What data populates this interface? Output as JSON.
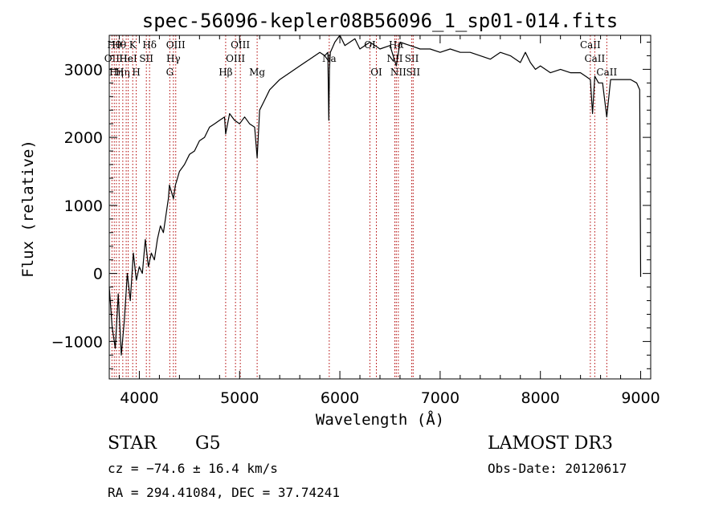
{
  "chart_data": {
    "type": "line",
    "title": "spec-56096-kepler08B56096_1_sp01-014.fits",
    "xlabel": "Wavelength (Å)",
    "ylabel": "Flux (relative)",
    "xlim": [
      3700,
      9100
    ],
    "ylim": [
      -1550,
      3500
    ],
    "x_ticks": [
      4000,
      5000,
      6000,
      7000,
      8000,
      9000
    ],
    "y_ticks": [
      -1000,
      0,
      1000,
      2000,
      3000
    ],
    "x_tick_labels": [
      "4000",
      "5000",
      "6000",
      "7000",
      "8000",
      "9000"
    ],
    "y_tick_labels": [
      "−1000",
      "0",
      "1000",
      "2000",
      "3000"
    ],
    "grid": false,
    "series": [
      {
        "x": [
          3700,
          3730,
          3760,
          3790,
          3820,
          3850,
          3880,
          3910,
          3940,
          3970,
          4000,
          4030,
          4060,
          4090,
          4120,
          4150,
          4180,
          4210,
          4240,
          4270,
          4290,
          4300,
          4320,
          4340,
          4360,
          4400,
          4450,
          4500,
          4550,
          4600,
          4650,
          4700,
          4750,
          4800,
          4850,
          4861,
          4900,
          4950,
          5000,
          5050,
          5100,
          5150,
          5175,
          5200,
          5250,
          5300,
          5400,
          5500,
          5600,
          5700,
          5800,
          5850,
          5880,
          5890,
          5896,
          5905,
          5920,
          5950,
          6000,
          6050,
          6100,
          6150,
          6200,
          6300,
          6400,
          6500,
          6563,
          6600,
          6700,
          6800,
          6900,
          7000,
          7100,
          7200,
          7300,
          7400,
          7500,
          7600,
          7700,
          7800,
          7850,
          7900,
          7950,
          8000,
          8100,
          8200,
          8300,
          8400,
          8450,
          8498,
          8520,
          8542,
          8580,
          8620,
          8662,
          8700,
          8800,
          8900,
          8960,
          8990,
          9000
        ],
        "y": [
          -200,
          -800,
          -1100,
          -300,
          -1200,
          -700,
          0,
          -400,
          300,
          -100,
          100,
          0,
          500,
          100,
          300,
          200,
          500,
          700,
          600,
          900,
          1100,
          1300,
          1200,
          1100,
          1300,
          1500,
          1600,
          1750,
          1800,
          1950,
          2000,
          2150,
          2200,
          2250,
          2300,
          2050,
          2350,
          2250,
          2200,
          2300,
          2200,
          2150,
          1700,
          2400,
          2550,
          2700,
          2850,
          2950,
          3050,
          3150,
          3250,
          3200,
          3250,
          2250,
          3000,
          3250,
          3300,
          3400,
          3550,
          3350,
          3400,
          3450,
          3300,
          3400,
          3300,
          3350,
          3050,
          3400,
          3350,
          3300,
          3300,
          3250,
          3300,
          3250,
          3250,
          3200,
          3150,
          3250,
          3200,
          3100,
          3250,
          3100,
          3000,
          3050,
          2950,
          3000,
          2950,
          2950,
          2900,
          2850,
          2350,
          2900,
          2800,
          2800,
          2300,
          2850,
          2850,
          2850,
          2800,
          2700,
          -50
        ]
      }
    ],
    "lines": [
      {
        "x": 3727,
        "label": "OII",
        "row": 1
      },
      {
        "x": 3750,
        "label": "Hθ",
        "row": 0
      },
      {
        "x": 3771,
        "label": "Hη",
        "row": 2
      },
      {
        "x": 3798,
        "label": "Hθ",
        "row": 0
      },
      {
        "x": 3835,
        "label": "Hη",
        "row": 2
      },
      {
        "x": 3869,
        "label": "He",
        "row": 1
      },
      {
        "x": 3889,
        "label": "HeI",
        "row": 1
      },
      {
        "x": 3934,
        "label": "K",
        "row": 0
      },
      {
        "x": 3969,
        "label": "H",
        "row": 2
      },
      {
        "x": 4070,
        "label": "SII",
        "row": 1
      },
      {
        "x": 4102,
        "label": "Hδ",
        "row": 0
      },
      {
        "x": 4304,
        "label": "G",
        "row": 2
      },
      {
        "x": 4340,
        "label": "Hγ",
        "row": 1
      },
      {
        "x": 4363,
        "label": "OIII",
        "row": 0
      },
      {
        "x": 4861,
        "label": "Hβ",
        "row": 2
      },
      {
        "x": 4959,
        "label": "OIII",
        "row": 1
      },
      {
        "x": 5007,
        "label": "OIII",
        "row": 0
      },
      {
        "x": 5175,
        "label": "Mg",
        "row": 2
      },
      {
        "x": 5894,
        "label": "Na",
        "row": 1
      },
      {
        "x": 6300,
        "label": "OI",
        "row": 0
      },
      {
        "x": 6364,
        "label": "OI",
        "row": 2
      },
      {
        "x": 6548,
        "label": "NII",
        "row": 1
      },
      {
        "x": 6563,
        "label": "Hα",
        "row": 0
      },
      {
        "x": 6583,
        "label": "NII",
        "row": 2
      },
      {
        "x": 6717,
        "label": "SII",
        "row": 1
      },
      {
        "x": 6731,
        "label": "SII",
        "row": 2
      },
      {
        "x": 8498,
        "label": "CaII",
        "row": 0
      },
      {
        "x": 8542,
        "label": "CaII",
        "row": 1
      },
      {
        "x": 8662,
        "label": "CaII",
        "row": 2
      }
    ]
  },
  "info": {
    "class_label": "STAR",
    "subclass": "G5",
    "survey": "LAMOST DR3",
    "redshift": "cz = −74.6 ± 16.4 km/s",
    "obs_date": "Obs-Date: 20120617",
    "coords": "RA = 294.41084, DEC =  37.74241"
  }
}
